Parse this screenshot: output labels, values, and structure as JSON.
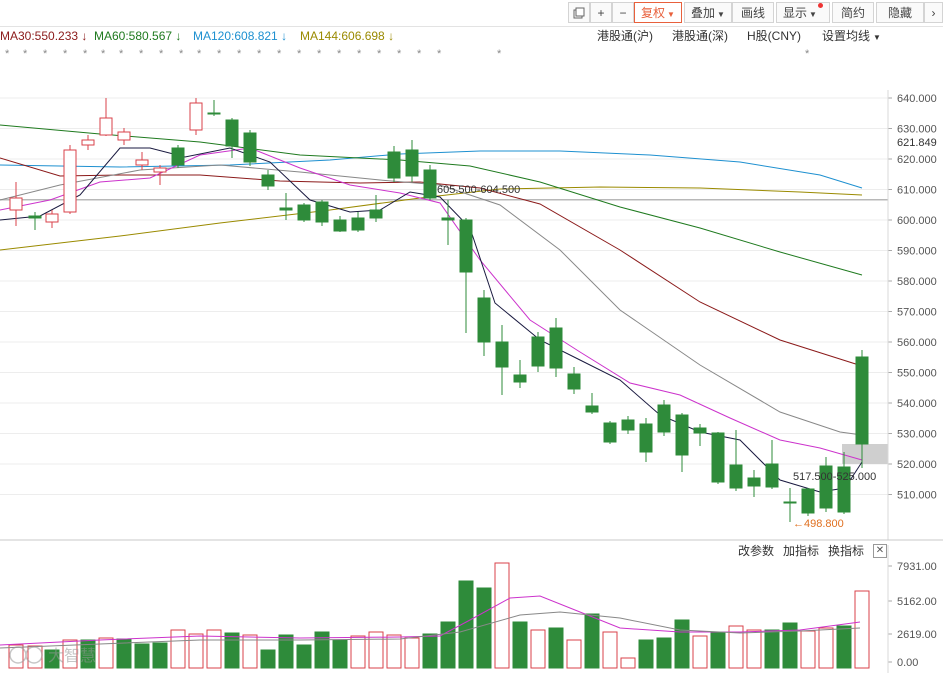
{
  "toolbar": {
    "undo_icon": "layout-icon",
    "plus_label": "+",
    "minus_label": "−",
    "fuquan_label": "复权",
    "diejia_label": "叠加",
    "huaxian_label": "画线",
    "xianshi_label": "显示",
    "jianyue_label": "简约",
    "yincang_label": "隐藏"
  },
  "ma_legend": [
    {
      "label": "MA30:550.233",
      "arrow": "↓",
      "color": "#8b1a1a"
    },
    {
      "label": "MA60:580.567",
      "arrow": "↓",
      "color": "#1f7a1f"
    },
    {
      "label": "MA120:608.821",
      "arrow": "↓",
      "color": "#1e90d0"
    },
    {
      "label": "MA144:606.698",
      "arrow": "↓",
      "color": "#9a8a00"
    }
  ],
  "tabs": {
    "hk_sh": "港股通(沪)",
    "hk_sz": "港股通(深)",
    "h_share": "H股(CNY)",
    "set_ma": "设置均线"
  },
  "price_axis": [
    "640.000",
    "630.000",
    "620.000",
    "610.000",
    "600.000",
    "590.000",
    "580.000",
    "570.000",
    "560.000",
    "550.000",
    "540.000",
    "530.000",
    "520.000",
    "510.000"
  ],
  "current_price": "621.849",
  "annotations": {
    "zone_upper": "605.500-604.500",
    "zone_lower": "517.500-525.000",
    "low_mark": "498.800"
  },
  "volume_panel": {
    "tools": [
      "改参数",
      "加指标",
      "换指标"
    ],
    "close_label": "✕",
    "axis": [
      "7931.00",
      "5162.00",
      "2619.00",
      "0.00"
    ]
  },
  "watermark": "大智慧",
  "colors": {
    "up": "#d9414a",
    "down": "#2e8b3a",
    "ma5": "#1a1a40",
    "ma10": "#cc33cc",
    "ma20": "#888888",
    "ma30": "#8b1a1a",
    "ma60": "#1f7a1f",
    "ma120": "#1e90d0",
    "ma144": "#9a8a00"
  }
}
